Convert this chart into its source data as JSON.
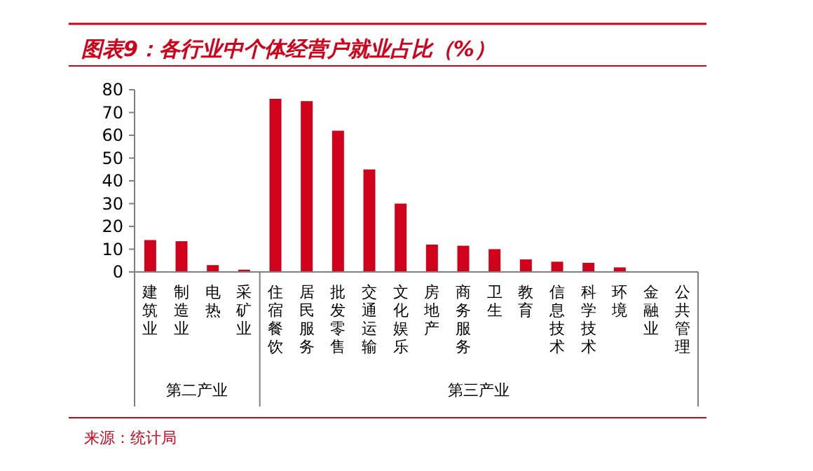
{
  "chart_data": {
    "type": "bar",
    "title": "图表9：各行业中个体经营户就业占比（%）",
    "categories": [
      "建筑业",
      "制造业",
      "电热",
      "采矿业",
      "住宿餐饮",
      "居民服务",
      "批发零售",
      "交通运输",
      "文化娱乐",
      "房地产",
      "商务服务",
      "卫生",
      "教育",
      "信息技术",
      "科学技术",
      "环境",
      "金融业",
      "公共管理"
    ],
    "values": [
      14,
      13.5,
      3,
      1,
      76,
      75,
      62,
      45,
      30,
      12,
      11.5,
      10,
      5.5,
      4.5,
      4,
      2,
      0,
      0
    ],
    "color": "#d0021b",
    "ylim": [
      0,
      80
    ],
    "yticks": [
      0,
      10,
      20,
      30,
      40,
      50,
      60,
      70,
      80
    ],
    "annotations": [
      "第二产业",
      "第三产业",
      "来源：统计局"
    ]
  }
}
